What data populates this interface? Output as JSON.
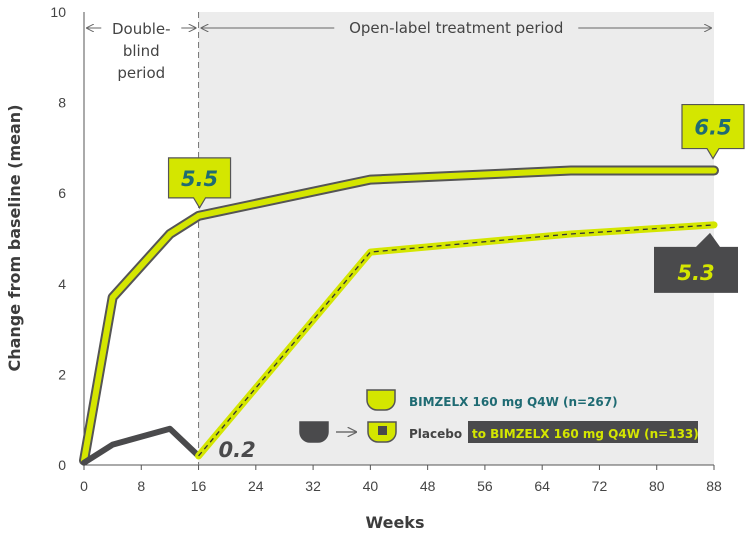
{
  "chart_data": {
    "type": "line",
    "xlabel": "Weeks",
    "ylabel": "Change from baseline (mean)",
    "xlim": [
      0,
      88
    ],
    "ylim": [
      0,
      10
    ],
    "x_ticks": [
      "0",
      "8",
      "16",
      "24",
      "32",
      "40",
      "48",
      "56",
      "64",
      "72",
      "80",
      "88"
    ],
    "y_ticks": [
      "0",
      "2",
      "4",
      "6",
      "8",
      "10"
    ],
    "periods": {
      "double_blind": "Double-blind period",
      "double_blind_lines": [
        "Double-",
        "blind",
        "period"
      ],
      "open_label": "Open-label treatment period",
      "split_week": 16
    },
    "series": [
      {
        "name": "BIMZELX 160 mg Q4W (n=267)",
        "x": [
          0,
          4,
          12,
          16,
          40,
          68,
          88
        ],
        "y": [
          0.1,
          3.7,
          5.1,
          5.5,
          6.3,
          6.5,
          6.5
        ],
        "color": "#d4e600",
        "outline": "#555555"
      },
      {
        "name": "Placebo",
        "x": [
          0,
          4,
          12,
          16
        ],
        "y": [
          0.05,
          0.45,
          0.8,
          0.2
        ],
        "color": "#4a4a4c"
      },
      {
        "name": "Placebo to BIMZELX 160 mg Q4W (n=133)",
        "x": [
          16,
          40,
          68,
          88
        ],
        "y": [
          0.2,
          4.7,
          5.1,
          5.3
        ],
        "color": "#d4e600",
        "dashed": true
      }
    ],
    "annotations": [
      {
        "text": "5.5",
        "x": 16,
        "y": 5.5
      },
      {
        "text": "6.5",
        "x": 88,
        "y": 6.5
      },
      {
        "text": "5.3",
        "x": 88,
        "y": 5.3
      },
      {
        "text": "0.2",
        "x": 16,
        "y": 0.2
      }
    ],
    "legend": {
      "position": "bottom-right",
      "item1": "BIMZELX 160 mg Q4W (n=267)",
      "item2_prefix": "Placebo",
      "item2_suffix": "to BIMZELX 160 mg Q4W (n=133)",
      "arrow_icon": "right-arrow-icon"
    },
    "colors": {
      "lime": "#d4e600",
      "dark_gray": "#4a4a4c",
      "teal_text": "#1f6b73",
      "shade": "#ececec"
    }
  }
}
